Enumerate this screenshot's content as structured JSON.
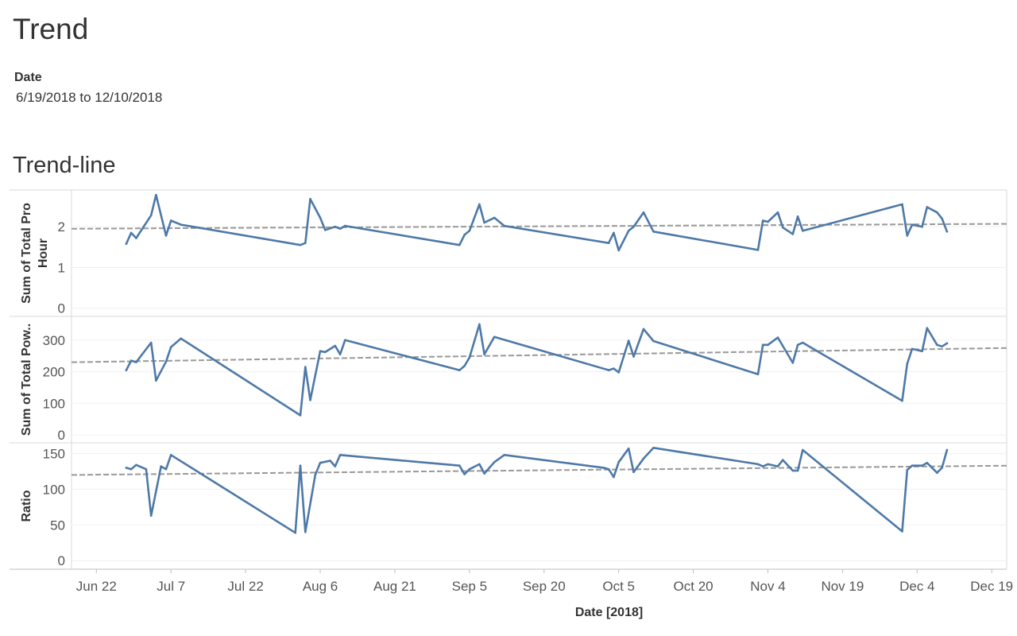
{
  "page": {
    "title": "Trend",
    "filter_label": "Date",
    "filter_value": "6/19/2018 to 12/10/2018",
    "subtitle": "Trend-line"
  },
  "chart_data": {
    "type": "line",
    "x_axis": {
      "label": "Date [2018]",
      "range": [
        "2018-06-17",
        "2018-12-22"
      ],
      "ticks": [
        {
          "date": "2018-06-22",
          "label": "Jun 22"
        },
        {
          "date": "2018-07-07",
          "label": "Jul 7"
        },
        {
          "date": "2018-07-22",
          "label": "Jul 22"
        },
        {
          "date": "2018-08-06",
          "label": "Aug 6"
        },
        {
          "date": "2018-08-21",
          "label": "Aug 21"
        },
        {
          "date": "2018-09-05",
          "label": "Sep 5"
        },
        {
          "date": "2018-09-20",
          "label": "Sep 20"
        },
        {
          "date": "2018-10-05",
          "label": "Oct 5"
        },
        {
          "date": "2018-10-20",
          "label": "Oct 20"
        },
        {
          "date": "2018-11-04",
          "label": "Nov 4"
        },
        {
          "date": "2018-11-19",
          "label": "Nov 19"
        },
        {
          "date": "2018-12-04",
          "label": "Dec 4"
        },
        {
          "date": "2018-12-19",
          "label": "Dec 19"
        }
      ]
    },
    "line_color": "#4e79a7",
    "trend_color": "#999999",
    "grid": true,
    "panels": [
      {
        "ylabel_lines": [
          "Sum of Total Pro",
          "Hour"
        ],
        "ylim": [
          -0.2,
          2.9
        ],
        "yticks": [
          0,
          1,
          2
        ],
        "trend": [
          1.95,
          2.07
        ],
        "series": [
          [
            "2018-06-28",
            1.58
          ],
          [
            "2018-06-29",
            1.85
          ],
          [
            "2018-06-30",
            1.72
          ],
          [
            "2018-07-03",
            2.28
          ],
          [
            "2018-07-04",
            2.78
          ],
          [
            "2018-07-06",
            1.78
          ],
          [
            "2018-07-07",
            2.15
          ],
          [
            "2018-07-09",
            2.05
          ],
          [
            "2018-08-02",
            1.55
          ],
          [
            "2018-08-03",
            1.6
          ],
          [
            "2018-08-04",
            2.68
          ],
          [
            "2018-08-06",
            2.22
          ],
          [
            "2018-08-07",
            1.92
          ],
          [
            "2018-08-09",
            2.0
          ],
          [
            "2018-08-10",
            1.95
          ],
          [
            "2018-08-11",
            2.02
          ],
          [
            "2018-09-03",
            1.55
          ],
          [
            "2018-09-04",
            1.8
          ],
          [
            "2018-09-05",
            1.9
          ],
          [
            "2018-09-07",
            2.55
          ],
          [
            "2018-09-08",
            2.1
          ],
          [
            "2018-09-10",
            2.22
          ],
          [
            "2018-09-12",
            2.02
          ],
          [
            "2018-10-03",
            1.6
          ],
          [
            "2018-10-04",
            1.85
          ],
          [
            "2018-10-05",
            1.42
          ],
          [
            "2018-10-07",
            1.9
          ],
          [
            "2018-10-08",
            2.0
          ],
          [
            "2018-10-10",
            2.35
          ],
          [
            "2018-10-12",
            1.88
          ],
          [
            "2018-11-02",
            1.43
          ],
          [
            "2018-11-03",
            2.15
          ],
          [
            "2018-11-04",
            2.12
          ],
          [
            "2018-11-06",
            2.35
          ],
          [
            "2018-11-07",
            1.98
          ],
          [
            "2018-11-09",
            1.82
          ],
          [
            "2018-11-10",
            2.25
          ],
          [
            "2018-11-11",
            1.9
          ],
          [
            "2018-12-01",
            2.55
          ],
          [
            "2018-12-02",
            1.78
          ],
          [
            "2018-12-03",
            2.05
          ],
          [
            "2018-12-05",
            2.0
          ],
          [
            "2018-12-06",
            2.48
          ],
          [
            "2018-12-08",
            2.35
          ],
          [
            "2018-12-09",
            2.2
          ],
          [
            "2018-12-10",
            1.88
          ]
        ]
      },
      {
        "ylabel_lines": [
          "Sum of Total Pow.."
        ],
        "ylim": [
          -25,
          375
        ],
        "yticks": [
          0,
          100,
          200,
          300
        ],
        "trend": [
          230,
          275
        ],
        "series": [
          [
            "2018-06-28",
            205
          ],
          [
            "2018-06-29",
            235
          ],
          [
            "2018-06-30",
            230
          ],
          [
            "2018-07-03",
            292
          ],
          [
            "2018-07-04",
            172
          ],
          [
            "2018-07-06",
            232
          ],
          [
            "2018-07-07",
            278
          ],
          [
            "2018-07-09",
            305
          ],
          [
            "2018-08-02",
            62
          ],
          [
            "2018-08-03",
            215
          ],
          [
            "2018-08-04",
            110
          ],
          [
            "2018-08-06",
            265
          ],
          [
            "2018-08-07",
            262
          ],
          [
            "2018-08-09",
            282
          ],
          [
            "2018-08-10",
            255
          ],
          [
            "2018-08-11",
            300
          ],
          [
            "2018-09-03",
            205
          ],
          [
            "2018-09-04",
            218
          ],
          [
            "2018-09-05",
            245
          ],
          [
            "2018-09-07",
            350
          ],
          [
            "2018-09-08",
            255
          ],
          [
            "2018-09-10",
            310
          ],
          [
            "2018-10-03",
            205
          ],
          [
            "2018-10-04",
            210
          ],
          [
            "2018-10-05",
            198
          ],
          [
            "2018-10-07",
            298
          ],
          [
            "2018-10-08",
            248
          ],
          [
            "2018-10-10",
            335
          ],
          [
            "2018-10-12",
            297
          ],
          [
            "2018-11-02",
            192
          ],
          [
            "2018-11-03",
            285
          ],
          [
            "2018-11-04",
            285
          ],
          [
            "2018-11-06",
            308
          ],
          [
            "2018-11-09",
            228
          ],
          [
            "2018-11-10",
            285
          ],
          [
            "2018-11-11",
            292
          ],
          [
            "2018-12-01",
            108
          ],
          [
            "2018-12-02",
            225
          ],
          [
            "2018-12-03",
            272
          ],
          [
            "2018-12-05",
            265
          ],
          [
            "2018-12-06",
            338
          ],
          [
            "2018-12-08",
            285
          ],
          [
            "2018-12-09",
            280
          ],
          [
            "2018-12-10",
            290
          ]
        ]
      },
      {
        "ylabel_lines": [
          "Ratio"
        ],
        "ylim": [
          -12,
          165
        ],
        "yticks": [
          0,
          50,
          100,
          150
        ],
        "trend": [
          120,
          133
        ],
        "series": [
          [
            "2018-06-28",
            130
          ],
          [
            "2018-06-29",
            128
          ],
          [
            "2018-06-30",
            134
          ],
          [
            "2018-07-02",
            128
          ],
          [
            "2018-07-03",
            63
          ],
          [
            "2018-07-05",
            132
          ],
          [
            "2018-07-06",
            128
          ],
          [
            "2018-07-07",
            148
          ],
          [
            "2018-08-01",
            39
          ],
          [
            "2018-08-02",
            133
          ],
          [
            "2018-08-03",
            40
          ],
          [
            "2018-08-05",
            120
          ],
          [
            "2018-08-06",
            137
          ],
          [
            "2018-08-08",
            140
          ],
          [
            "2018-08-09",
            132
          ],
          [
            "2018-08-10",
            148
          ],
          [
            "2018-09-03",
            133
          ],
          [
            "2018-09-04",
            121
          ],
          [
            "2018-09-05",
            128
          ],
          [
            "2018-09-07",
            135
          ],
          [
            "2018-09-08",
            122
          ],
          [
            "2018-09-10",
            138
          ],
          [
            "2018-09-12",
            148
          ],
          [
            "2018-10-02",
            130
          ],
          [
            "2018-10-03",
            128
          ],
          [
            "2018-10-04",
            117
          ],
          [
            "2018-10-05",
            138
          ],
          [
            "2018-10-07",
            157
          ],
          [
            "2018-10-08",
            124
          ],
          [
            "2018-10-10",
            143
          ],
          [
            "2018-10-12",
            158
          ],
          [
            "2018-11-02",
            135
          ],
          [
            "2018-11-03",
            132
          ],
          [
            "2018-11-04",
            135
          ],
          [
            "2018-11-06",
            132
          ],
          [
            "2018-11-07",
            141
          ],
          [
            "2018-11-09",
            126
          ],
          [
            "2018-11-10",
            126
          ],
          [
            "2018-11-11",
            155
          ],
          [
            "2018-12-01",
            41
          ],
          [
            "2018-12-02",
            127
          ],
          [
            "2018-12-03",
            133
          ],
          [
            "2018-12-05",
            133
          ],
          [
            "2018-12-06",
            137
          ],
          [
            "2018-12-08",
            123
          ],
          [
            "2018-12-09",
            130
          ],
          [
            "2018-12-10",
            155
          ]
        ]
      }
    ]
  }
}
